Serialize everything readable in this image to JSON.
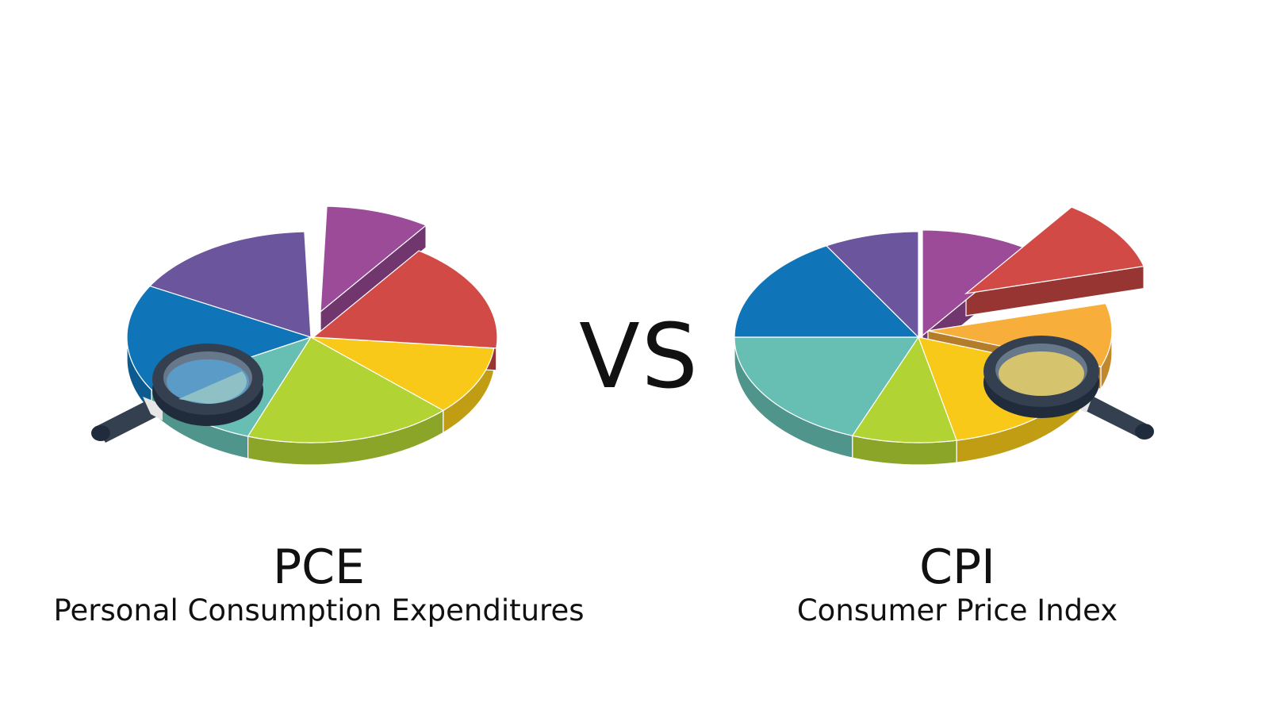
{
  "vs_label": "VS",
  "left": {
    "title": "PCE",
    "subtitle": "Personal Consumption Expenditures"
  },
  "right": {
    "title": "CPI",
    "subtitle": "Consumer Price Index"
  },
  "colors": {
    "violet": "#6b559c",
    "purple": "#9b4b97",
    "red": "#d24a45",
    "yellow": "#f8c918",
    "orange": "#f8ae3a",
    "green": "#b2d334",
    "teal": "#67bfb3",
    "blue": "#1075b8",
    "magnifier": "#34404f"
  }
}
